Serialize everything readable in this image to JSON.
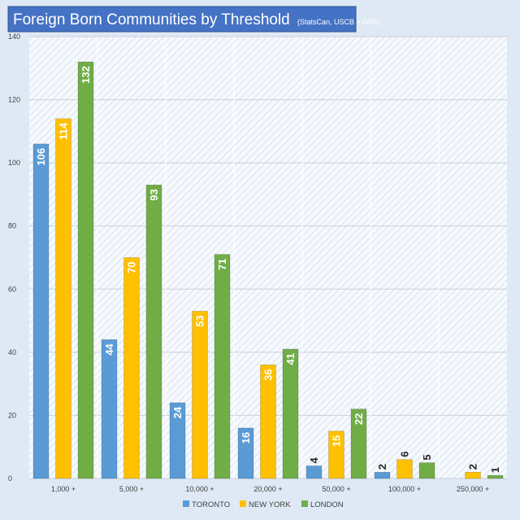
{
  "chart_data": {
    "type": "bar",
    "title": "Foreign Born Communities by Threshold",
    "subtitle": "(StatsCan, USCB + ONS)",
    "categories": [
      "1,000 +",
      "5,000 +",
      "10,000 +",
      "20,000 +",
      "50,000 +",
      "100,000 +",
      "250,000 +"
    ],
    "series": [
      {
        "name": "TORONTO",
        "color": "#5b9bd5",
        "values": [
          106,
          44,
          24,
          16,
          4,
          2,
          0
        ]
      },
      {
        "name": "NEW YORK",
        "color": "#ffc000",
        "values": [
          114,
          70,
          53,
          36,
          15,
          6,
          2
        ]
      },
      {
        "name": "LONDON",
        "color": "#70ad47",
        "values": [
          132,
          93,
          71,
          41,
          22,
          5,
          1
        ]
      }
    ],
    "ylim": [
      0,
      140
    ],
    "yticks": [
      0,
      20,
      40,
      60,
      80,
      100,
      120,
      140
    ],
    "xlabel": "",
    "ylabel": "",
    "grid": true,
    "legend_position": "bottom",
    "data_label_orientation": "vertical-inside-if-fits"
  }
}
